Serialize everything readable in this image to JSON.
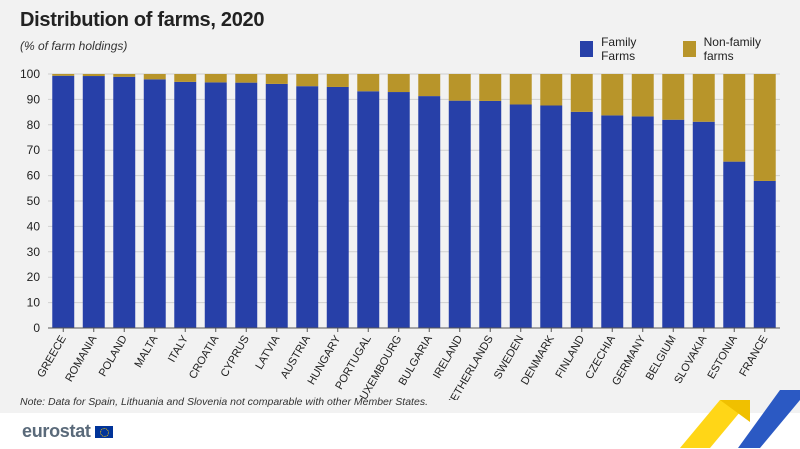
{
  "header": {
    "title": "Distribution of farms, 2020",
    "subtitle": "(% of farm holdings)"
  },
  "legend": {
    "items": [
      {
        "label": "Family Farms",
        "color": "#2740a8"
      },
      {
        "label": "Non-family farms",
        "color": "#b8952a"
      }
    ]
  },
  "note": "Note: Data for Spain, Lithuania and Slovenia not comparable with other Member States.",
  "footer": {
    "logo_text": "eurostat"
  },
  "chart_data": {
    "type": "bar",
    "stacked": true,
    "title": "Distribution of farms, 2020",
    "subtitle": "(% of farm holdings)",
    "categories": [
      "GREECE",
      "ROMANIA",
      "POLAND",
      "MALTA",
      "ITALY",
      "CROATIA",
      "CYPRUS",
      "LATVIA",
      "AUSTRIA",
      "HUNGARY",
      "PORTUGAL",
      "LUXEMBOURG",
      "BULGARIA",
      "IRELAND",
      "NETHERLANDS",
      "SWEDEN",
      "DENMARK",
      "FINLAND",
      "CZECHIA",
      "GERMANY",
      "BELGIUM",
      "SLOVAKIA",
      "ESTONIA",
      "FRANCE"
    ],
    "series": [
      {
        "name": "Family Farms",
        "color": "#2740a8",
        "values": [
          99.3,
          99.2,
          98.9,
          97.9,
          96.9,
          96.7,
          96.6,
          96.1,
          95.2,
          94.9,
          93.2,
          92.9,
          91.3,
          89.5,
          89.4,
          88.0,
          87.6,
          85.1,
          83.7,
          83.3,
          82.0,
          81.2,
          65.5,
          57.9
        ]
      },
      {
        "name": "Non-family farms",
        "color": "#b8952a",
        "values": [
          0.7,
          0.8,
          1.1,
          2.1,
          3.1,
          3.3,
          3.4,
          3.9,
          4.8,
          5.1,
          6.8,
          7.1,
          8.7,
          10.5,
          10.6,
          12.0,
          12.4,
          14.9,
          16.3,
          16.7,
          18.0,
          18.8,
          34.5,
          42.1
        ]
      }
    ],
    "ylim": [
      0,
      100
    ],
    "yticks": [
      0,
      10,
      20,
      30,
      40,
      50,
      60,
      70,
      80,
      90,
      100
    ],
    "grid": true,
    "legend_position": "top-right"
  }
}
